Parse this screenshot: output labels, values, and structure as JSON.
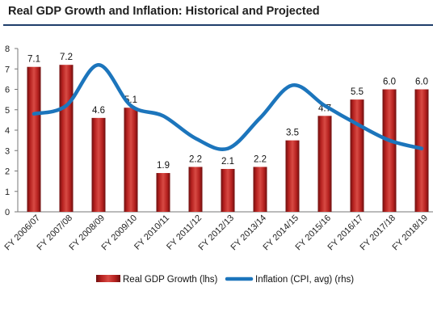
{
  "title": "Real GDP Growth and Inflation:  Historical and Projected",
  "chart_data": {
    "type": "bar",
    "categories": [
      "FY 2006/07",
      "FY 2007/08",
      "FY 2008/09",
      "FY 2009/10",
      "FY 2010/11",
      "FY 2011/12",
      "FY 2012/13",
      "FY 2013/14",
      "FY 2014/15",
      "FY 2015/16",
      "FY 2016/17",
      "FY 2017/18",
      "FY 2018/19"
    ],
    "series": [
      {
        "name": "Real GDP Growth (lhs)",
        "type": "bar",
        "axis": "left",
        "values": [
          7.1,
          7.2,
          4.6,
          5.1,
          1.9,
          2.2,
          2.1,
          2.2,
          3.5,
          4.7,
          5.5,
          6.0,
          6.0
        ],
        "labels": [
          "7.1",
          "7.2",
          "4.6",
          "5.1",
          "1.9",
          "2.2",
          "2.1",
          "2.2",
          "3.5",
          "4.7",
          "5.5",
          "6.0",
          "6.0"
        ],
        "color": "#b5211f"
      },
      {
        "name": "Inflation (CPI, avg) (rhs)",
        "type": "line",
        "axis": "right",
        "values": [
          4.8,
          5.2,
          7.2,
          5.2,
          4.7,
          3.6,
          3.1,
          4.6,
          6.2,
          5.2,
          4.3,
          3.5,
          3.1
        ],
        "color": "#1c75bc"
      }
    ],
    "yticks": [
      "0",
      "1",
      "2",
      "3",
      "4",
      "5",
      "6",
      "7",
      "8"
    ],
    "ylim": [
      0,
      8
    ],
    "grid": false,
    "legend": "bottom"
  }
}
